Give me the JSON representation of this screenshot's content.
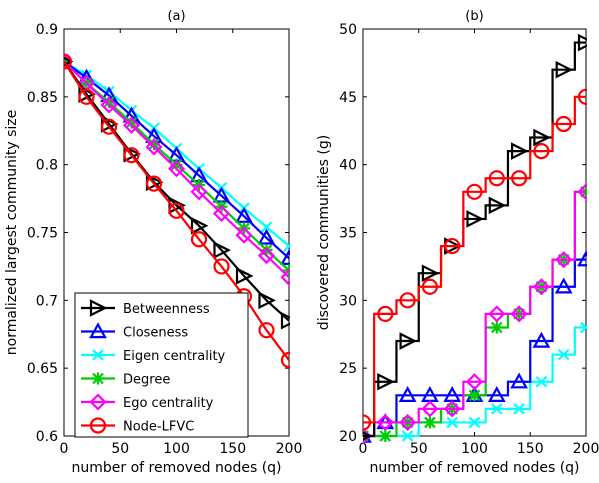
{
  "chart_data": [
    {
      "type": "line",
      "title": "(a)",
      "xlabel": "number of removed nodes (q)",
      "ylabel": "normalized largest community size",
      "xlim": [
        0,
        200
      ],
      "ylim": [
        0.6,
        0.9
      ],
      "xticks": [
        "0",
        "50",
        "100",
        "150",
        "200"
      ],
      "yticks": [
        "0.6",
        "0.65",
        "0.7",
        "0.75",
        "0.8",
        "0.85",
        "0.9"
      ],
      "grid": false,
      "legend": "bottom-left",
      "series": [
        {
          "name": "Betweenness",
          "color": "#000000",
          "marker": "triangle-right",
          "x": [
            0,
            20,
            40,
            60,
            80,
            100,
            120,
            140,
            160,
            180,
            200
          ],
          "y": [
            0.876,
            0.852,
            0.83,
            0.808,
            0.787,
            0.77,
            0.755,
            0.737,
            0.718,
            0.7,
            0.685
          ]
        },
        {
          "name": "Closeness",
          "color": "#0000ff",
          "marker": "triangle-up",
          "x": [
            0,
            20,
            40,
            60,
            80,
            100,
            120,
            140,
            160,
            180,
            200
          ],
          "y": [
            0.876,
            0.864,
            0.851,
            0.836,
            0.821,
            0.807,
            0.792,
            0.777,
            0.762,
            0.746,
            0.731
          ]
        },
        {
          "name": "Eigen centrality",
          "color": "#00ffff",
          "marker": "x",
          "x": [
            0,
            20,
            40,
            60,
            80,
            100,
            120,
            140,
            160,
            180,
            200
          ],
          "y": [
            0.876,
            0.866,
            0.854,
            0.84,
            0.827,
            0.812,
            0.797,
            0.783,
            0.768,
            0.754,
            0.74
          ]
        },
        {
          "name": "Degree",
          "color": "#00cc00",
          "marker": "asterisk",
          "x": [
            0,
            20,
            40,
            60,
            80,
            100,
            120,
            140,
            160,
            180,
            200
          ],
          "y": [
            0.876,
            0.86,
            0.846,
            0.831,
            0.815,
            0.8,
            0.785,
            0.769,
            0.753,
            0.737,
            0.722
          ]
        },
        {
          "name": "Ego centrality",
          "color": "#ff00ff",
          "marker": "diamond",
          "x": [
            0,
            20,
            40,
            60,
            80,
            100,
            120,
            140,
            160,
            180,
            200
          ],
          "y": [
            0.876,
            0.86,
            0.844,
            0.829,
            0.813,
            0.797,
            0.78,
            0.764,
            0.748,
            0.733,
            0.717
          ]
        },
        {
          "name": "Node-LFVC",
          "color": "#ff0000",
          "marker": "circle",
          "x": [
            0,
            20,
            40,
            60,
            80,
            100,
            120,
            140,
            160,
            180,
            200
          ],
          "y": [
            0.876,
            0.85,
            0.828,
            0.807,
            0.786,
            0.766,
            0.745,
            0.725,
            0.703,
            0.678,
            0.656
          ]
        }
      ]
    },
    {
      "type": "line",
      "title": "(b)",
      "xlabel": "number of removed nodes (q)",
      "ylabel": "discovered communities (g)",
      "xlim": [
        0,
        200
      ],
      "ylim": [
        20,
        50
      ],
      "xticks": [
        "0",
        "50",
        "100",
        "150",
        "200"
      ],
      "yticks": [
        "20",
        "25",
        "30",
        "35",
        "40",
        "45",
        "50"
      ],
      "grid": false,
      "series": [
        {
          "name": "Betweenness",
          "color": "#000000",
          "marker": "triangle-right",
          "x": [
            0,
            20,
            40,
            60,
            80,
            100,
            120,
            140,
            160,
            180,
            200
          ],
          "y": [
            20,
            24,
            27,
            32,
            34,
            36,
            37,
            41,
            42,
            47,
            49
          ]
        },
        {
          "name": "Closeness",
          "color": "#0000ff",
          "marker": "triangle-up",
          "x": [
            0,
            20,
            40,
            60,
            80,
            100,
            120,
            140,
            160,
            180,
            200
          ],
          "y": [
            20,
            21,
            23,
            23,
            23,
            23,
            23,
            24,
            27,
            31,
            33
          ]
        },
        {
          "name": "Eigen centrality",
          "color": "#00ffff",
          "marker": "x",
          "x": [
            0,
            20,
            40,
            60,
            80,
            100,
            120,
            140,
            160,
            180,
            200
          ],
          "y": [
            20,
            20,
            20,
            21,
            21,
            21,
            22,
            22,
            24,
            26,
            28
          ]
        },
        {
          "name": "Degree",
          "color": "#00cc00",
          "marker": "asterisk",
          "x": [
            0,
            20,
            40,
            60,
            80,
            100,
            120,
            140,
            160,
            180,
            200
          ],
          "y": [
            20,
            20,
            21,
            21,
            22,
            23,
            28,
            29,
            31,
            33,
            38
          ]
        },
        {
          "name": "Ego centrality",
          "color": "#ff00ff",
          "marker": "diamond",
          "x": [
            0,
            20,
            40,
            60,
            80,
            100,
            120,
            140,
            160,
            180,
            200
          ],
          "y": [
            20,
            21,
            21,
            22,
            22,
            24,
            29,
            29,
            31,
            33,
            38
          ]
        },
        {
          "name": "Node-LFVC",
          "color": "#ff0000",
          "marker": "circle",
          "x": [
            0,
            20,
            40,
            60,
            80,
            100,
            120,
            140,
            160,
            180,
            200
          ],
          "y": [
            21,
            29,
            30,
            31,
            34,
            38,
            39,
            39,
            41,
            43,
            45
          ]
        }
      ]
    }
  ]
}
